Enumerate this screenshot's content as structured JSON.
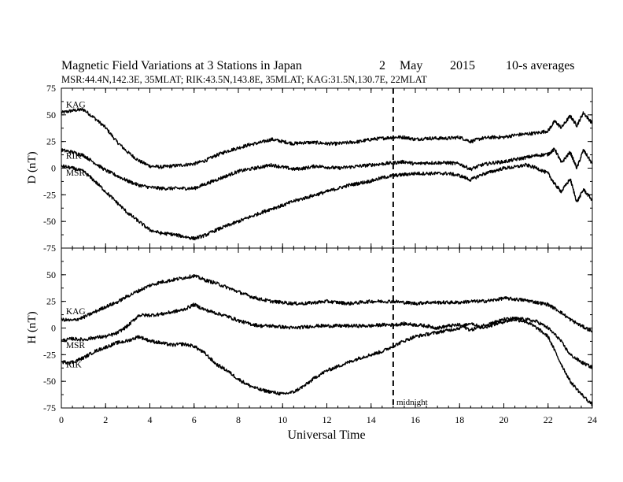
{
  "title": {
    "main": "Magnetic Field Variations at 3 Stations in Japan",
    "day": "2",
    "month": "May",
    "year": "2015",
    "averaging": "10-s averages"
  },
  "subtitle": "MSR:44.4N,142.3E, 35MLAT;  RIK:43.5N,143.8E, 35MLAT;  KAG:31.5N,130.7E, 22MLAT",
  "midnight_label": "midnight",
  "chart_data": [
    {
      "type": "line",
      "panel": "D",
      "ylabel": "D (nT)",
      "ylim": [
        -75,
        75
      ],
      "yticks": [
        75,
        50,
        25,
        0,
        -25,
        -50,
        -75
      ],
      "xlim": [
        0,
        24
      ],
      "xticks": [
        0,
        2,
        4,
        6,
        8,
        10,
        12,
        14,
        16,
        18,
        20,
        22,
        24
      ],
      "xlabel": "Universal Time",
      "vline_x": 15,
      "series": [
        {
          "name": "KAG",
          "x": [
            0,
            0.5,
            1,
            1.5,
            2,
            2.5,
            3,
            3.5,
            4,
            4.5,
            5,
            5.5,
            6,
            6.5,
            7,
            7.5,
            8,
            8.5,
            9,
            9.5,
            10,
            10.5,
            11,
            11.5,
            12,
            12.5,
            13,
            13.5,
            14,
            14.5,
            15,
            15.5,
            16,
            16.5,
            17,
            17.5,
            18,
            18.5,
            19,
            19.5,
            20,
            20.5,
            21,
            21.5,
            22,
            22.3,
            22.6,
            23,
            23.3,
            23.6,
            24
          ],
          "y": [
            52,
            54,
            55,
            47,
            38,
            25,
            15,
            7,
            2,
            1,
            2,
            3,
            4,
            7,
            12,
            16,
            19,
            22,
            24,
            27,
            25,
            23,
            24,
            24,
            23,
            23,
            24,
            25,
            27,
            28,
            29,
            29,
            27,
            28,
            28,
            28,
            29,
            25,
            28,
            29,
            29,
            31,
            32,
            33,
            35,
            44,
            38,
            49,
            40,
            52,
            42
          ]
        },
        {
          "name": "RIK",
          "x": [
            0,
            0.5,
            1,
            1.5,
            2,
            2.5,
            3,
            3.5,
            4,
            4.5,
            5,
            5.5,
            6,
            6.5,
            7,
            7.5,
            8,
            8.5,
            9,
            9.5,
            10,
            10.5,
            11,
            11.5,
            12,
            12.5,
            13,
            13.5,
            14,
            14.5,
            15,
            15.5,
            16,
            16.5,
            17,
            17.5,
            18,
            18.5,
            19,
            19.5,
            20,
            20.5,
            21,
            21.5,
            22,
            22.3,
            22.6,
            23,
            23.3,
            23.6,
            24
          ],
          "y": [
            17,
            15,
            12,
            5,
            -2,
            -7,
            -12,
            -16,
            -18,
            -19,
            -19,
            -19,
            -19,
            -15,
            -11,
            -7,
            -3,
            -1,
            1,
            3,
            1,
            -1,
            0,
            2,
            1,
            0,
            1,
            2,
            3,
            4,
            5,
            6,
            4,
            5,
            5,
            5,
            4,
            -1,
            3,
            5,
            6,
            8,
            10,
            12,
            13,
            18,
            5,
            15,
            0,
            17,
            4
          ]
        },
        {
          "name": "MSR",
          "x": [
            0,
            0.5,
            1,
            1.5,
            2,
            2.5,
            3,
            3.5,
            4,
            4.5,
            5,
            5.5,
            6,
            6.5,
            7,
            7.5,
            8,
            8.5,
            9,
            9.5,
            10,
            10.5,
            11,
            11.5,
            12,
            12.5,
            13,
            13.5,
            14,
            14.5,
            15,
            15.5,
            16,
            16.5,
            17,
            17.5,
            18,
            18.5,
            19,
            19.5,
            20,
            20.5,
            21,
            21.5,
            22,
            22.3,
            22.6,
            23,
            23.3,
            23.6,
            24
          ],
          "y": [
            2,
            0,
            -3,
            -12,
            -22,
            -32,
            -42,
            -50,
            -58,
            -61,
            -62,
            -64,
            -66,
            -63,
            -58,
            -54,
            -50,
            -46,
            -42,
            -38,
            -35,
            -31,
            -28,
            -25,
            -22,
            -19,
            -16,
            -14,
            -12,
            -9,
            -7,
            -6,
            -5,
            -5,
            -5,
            -5,
            -7,
            -11,
            -6,
            -3,
            0,
            1,
            3,
            0,
            -5,
            -15,
            -22,
            -10,
            -32,
            -20,
            -30
          ]
        }
      ],
      "labels": [
        {
          "text": "KAG",
          "x": 0.1,
          "y": 57
        },
        {
          "text": "RIK",
          "x": 0.1,
          "y": 9
        },
        {
          "text": "MSR",
          "x": 0.1,
          "y": -7
        }
      ]
    },
    {
      "type": "line",
      "panel": "H",
      "ylabel": "H (nT)",
      "ylim": [
        -75,
        75
      ],
      "yticks": [
        50,
        25,
        0,
        -25,
        -50,
        -75
      ],
      "xlim": [
        0,
        24
      ],
      "xticks": [
        0,
        2,
        4,
        6,
        8,
        10,
        12,
        14,
        16,
        18,
        20,
        22,
        24
      ],
      "xtick_labels": [
        "0",
        "2",
        "4",
        "6",
        "8",
        "10",
        "12",
        "14",
        "16",
        "18",
        "20",
        "22",
        "24"
      ],
      "xlabel": "Universal Time",
      "vline_x": 15,
      "series": [
        {
          "name": "KAG",
          "x": [
            0,
            0.5,
            1,
            1.5,
            2,
            2.5,
            3,
            3.5,
            4,
            4.5,
            5,
            5.5,
            6,
            6.5,
            7,
            7.5,
            8,
            8.5,
            9,
            9.5,
            10,
            10.5,
            11,
            11.5,
            12,
            12.5,
            13,
            13.5,
            14,
            14.5,
            15,
            15.5,
            16,
            16.5,
            17,
            17.5,
            18,
            18.5,
            19,
            19.5,
            20,
            20.5,
            21,
            21.5,
            22,
            22.5,
            23,
            23.5,
            24
          ],
          "y": [
            8,
            7,
            10,
            15,
            20,
            24,
            30,
            35,
            40,
            43,
            45,
            47,
            49,
            45,
            42,
            38,
            34,
            30,
            27,
            25,
            24,
            23,
            23,
            24,
            25,
            24,
            23,
            24,
            25,
            25,
            25,
            24,
            23,
            24,
            24,
            24,
            24,
            25,
            25,
            26,
            28,
            27,
            26,
            24,
            22,
            16,
            8,
            2,
            -3
          ]
        },
        {
          "name": "MSR",
          "x": [
            0,
            0.5,
            1,
            1.5,
            2,
            2.5,
            3,
            3.5,
            4,
            4.5,
            5,
            5.5,
            6,
            6.5,
            7,
            7.5,
            8,
            8.5,
            9,
            9.5,
            10,
            10.5,
            11,
            11.5,
            12,
            12.5,
            13,
            13.5,
            14,
            14.5,
            15,
            15.5,
            16,
            16.5,
            17,
            17.5,
            18,
            18.5,
            19,
            19.5,
            20,
            20.5,
            21,
            21.5,
            22,
            22.5,
            23,
            23.5,
            24
          ],
          "y": [
            -12,
            -10,
            -11,
            -9,
            -8,
            -5,
            2,
            12,
            12,
            13,
            15,
            17,
            22,
            17,
            14,
            11,
            7,
            4,
            2,
            2,
            1,
            0,
            1,
            2,
            2,
            2,
            2,
            2,
            2,
            3,
            3,
            4,
            3,
            2,
            0,
            2,
            3,
            -2,
            2,
            5,
            8,
            9,
            8,
            6,
            0,
            -10,
            -25,
            -32,
            -37
          ]
        },
        {
          "name": "RIK",
          "x": [
            0,
            0.5,
            1,
            1.5,
            2,
            2.5,
            3,
            3.5,
            4,
            4.5,
            5,
            5.5,
            6,
            6.5,
            7,
            7.5,
            8,
            8.5,
            9,
            9.5,
            10,
            10.5,
            11,
            11.5,
            12,
            12.5,
            13,
            13.5,
            14,
            14.5,
            15,
            15.5,
            16,
            16.5,
            17,
            17.5,
            18,
            18.5,
            19,
            19.5,
            20,
            20.5,
            21,
            21.5,
            22,
            22.5,
            23,
            23.5,
            24
          ],
          "y": [
            -32,
            -32,
            -28,
            -22,
            -18,
            -14,
            -12,
            -8,
            -12,
            -14,
            -16,
            -15,
            -17,
            -24,
            -34,
            -40,
            -48,
            -54,
            -58,
            -60,
            -62,
            -60,
            -54,
            -46,
            -40,
            -36,
            -32,
            -28,
            -25,
            -22,
            -17,
            -12,
            -8,
            -6,
            -4,
            -2,
            0,
            5,
            0,
            3,
            6,
            8,
            6,
            0,
            -8,
            -30,
            -50,
            -62,
            -72
          ]
        }
      ],
      "labels": [
        {
          "text": "KAG",
          "x": 0.1,
          "y": 13
        },
        {
          "text": "MSR",
          "x": 0.1,
          "y": -19
        },
        {
          "text": "RIK",
          "x": 0.1,
          "y": -37
        }
      ]
    }
  ]
}
